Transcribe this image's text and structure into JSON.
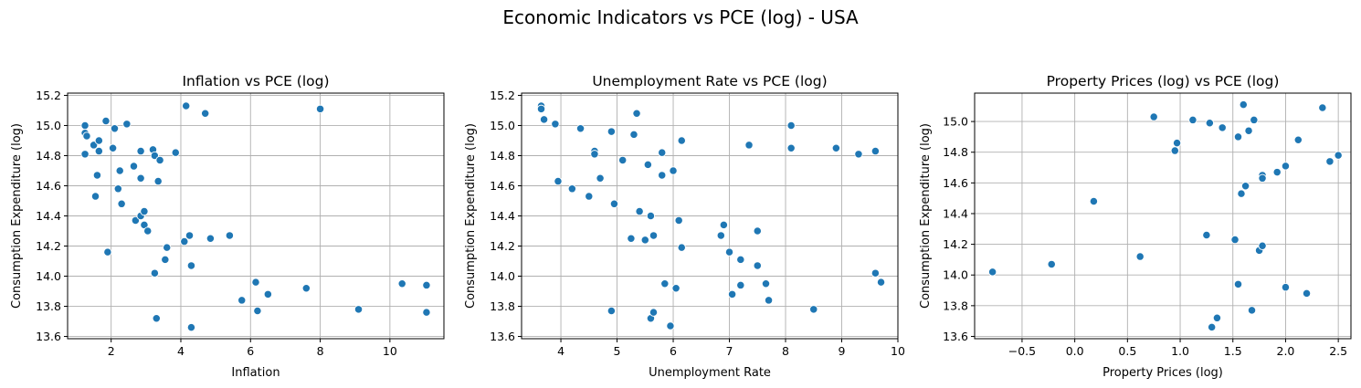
{
  "figure": {
    "title": "Economic Indicators vs PCE (log) - USA"
  },
  "colors": {
    "points": "#1f77b4",
    "grid": "#b0b0b0"
  },
  "chart_data": [
    {
      "type": "scatter",
      "title": "Inflation vs PCE (log)",
      "xlabel": "Inflation",
      "ylabel": "Consumption Expenditure (log)",
      "xlim": [
        0.75,
        11.55
      ],
      "ylim": [
        13.585,
        15.215
      ],
      "xticks": [
        2,
        4,
        6,
        8,
        10
      ],
      "yticks": [
        13.6,
        13.8,
        14.0,
        14.2,
        14.4,
        14.6,
        14.8,
        15.0,
        15.2
      ],
      "grid": true,
      "points": [
        [
          1.25,
          15.0
        ],
        [
          1.25,
          14.95
        ],
        [
          1.3,
          14.93
        ],
        [
          1.25,
          14.81
        ],
        [
          1.5,
          14.87
        ],
        [
          1.65,
          14.9
        ],
        [
          1.65,
          14.83
        ],
        [
          1.85,
          15.03
        ],
        [
          2.05,
          14.85
        ],
        [
          2.1,
          14.98
        ],
        [
          2.45,
          15.01
        ],
        [
          1.6,
          14.67
        ],
        [
          1.55,
          14.53
        ],
        [
          1.9,
          14.16
        ],
        [
          2.25,
          14.7
        ],
        [
          2.2,
          14.58
        ],
        [
          2.3,
          14.48
        ],
        [
          2.65,
          14.73
        ],
        [
          2.85,
          14.83
        ],
        [
          2.85,
          14.65
        ],
        [
          2.7,
          14.37
        ],
        [
          2.85,
          14.4
        ],
        [
          2.95,
          14.43
        ],
        [
          2.95,
          14.34
        ],
        [
          3.05,
          14.3
        ],
        [
          3.2,
          14.84
        ],
        [
          3.25,
          14.8
        ],
        [
          3.4,
          14.77
        ],
        [
          3.35,
          14.63
        ],
        [
          3.85,
          14.82
        ],
        [
          4.15,
          15.13
        ],
        [
          4.7,
          15.08
        ],
        [
          8.0,
          15.11
        ],
        [
          3.6,
          14.19
        ],
        [
          3.55,
          14.11
        ],
        [
          4.1,
          14.23
        ],
        [
          4.25,
          14.27
        ],
        [
          4.3,
          14.07
        ],
        [
          4.85,
          14.25
        ],
        [
          5.4,
          14.27
        ],
        [
          3.25,
          14.02
        ],
        [
          3.3,
          13.72
        ],
        [
          4.3,
          13.66
        ],
        [
          5.75,
          13.84
        ],
        [
          6.15,
          13.96
        ],
        [
          6.2,
          13.77
        ],
        [
          6.5,
          13.88
        ],
        [
          7.6,
          13.92
        ],
        [
          9.1,
          13.78
        ],
        [
          10.35,
          13.95
        ],
        [
          11.05,
          13.94
        ],
        [
          11.05,
          13.76
        ]
      ]
    },
    {
      "type": "scatter",
      "title": "Unemployment Rate vs PCE (log)",
      "xlabel": "Unemployment Rate",
      "ylabel": "Consumption Expenditure (log)",
      "xlim": [
        3.3,
        10.0
      ],
      "ylim": [
        13.585,
        15.215
      ],
      "xticks": [
        4,
        5,
        6,
        7,
        8,
        9,
        10
      ],
      "yticks": [
        13.6,
        13.8,
        14.0,
        14.2,
        14.4,
        14.6,
        14.8,
        15.0,
        15.2
      ],
      "grid": true,
      "points": [
        [
          3.65,
          15.13
        ],
        [
          3.65,
          15.11
        ],
        [
          3.7,
          15.04
        ],
        [
          3.9,
          15.01
        ],
        [
          4.35,
          14.98
        ],
        [
          4.9,
          14.96
        ],
        [
          5.3,
          14.94
        ],
        [
          5.35,
          15.08
        ],
        [
          6.15,
          14.9
        ],
        [
          6.0,
          14.7
        ],
        [
          4.6,
          14.83
        ],
        [
          4.6,
          14.81
        ],
        [
          5.1,
          14.77
        ],
        [
          5.55,
          14.74
        ],
        [
          5.8,
          14.82
        ],
        [
          5.8,
          14.67
        ],
        [
          4.7,
          14.65
        ],
        [
          3.95,
          14.63
        ],
        [
          4.2,
          14.58
        ],
        [
          4.5,
          14.53
        ],
        [
          4.95,
          14.48
        ],
        [
          5.4,
          14.43
        ],
        [
          5.6,
          14.4
        ],
        [
          6.1,
          14.37
        ],
        [
          5.25,
          14.25
        ],
        [
          5.5,
          14.24
        ],
        [
          5.65,
          14.27
        ],
        [
          6.15,
          14.19
        ],
        [
          6.85,
          14.27
        ],
        [
          6.9,
          14.34
        ],
        [
          7.0,
          14.16
        ],
        [
          7.5,
          14.3
        ],
        [
          7.35,
          14.87
        ],
        [
          8.1,
          14.85
        ],
        [
          8.1,
          15.0
        ],
        [
          8.9,
          14.85
        ],
        [
          9.3,
          14.81
        ],
        [
          9.6,
          14.83
        ],
        [
          7.2,
          14.11
        ],
        [
          7.5,
          14.07
        ],
        [
          5.85,
          13.95
        ],
        [
          6.05,
          13.92
        ],
        [
          7.05,
          13.88
        ],
        [
          7.2,
          13.94
        ],
        [
          7.65,
          13.95
        ],
        [
          7.7,
          13.84
        ],
        [
          4.9,
          13.77
        ],
        [
          5.6,
          13.72
        ],
        [
          5.65,
          13.76
        ],
        [
          5.95,
          13.67
        ],
        [
          8.5,
          13.78
        ],
        [
          9.6,
          14.02
        ],
        [
          9.7,
          13.96
        ]
      ]
    },
    {
      "type": "scatter",
      "title": "Property Prices (log) vs PCE (log)",
      "xlabel": "Property Prices (log)",
      "ylabel": "Consumption Expenditure (log)",
      "xlim": [
        -0.95,
        2.62
      ],
      "ylim": [
        13.585,
        15.185
      ],
      "xticks": [
        -0.5,
        0.0,
        0.5,
        1.0,
        1.5,
        2.0,
        2.5
      ],
      "xticklabels": [
        "−0.5",
        "0.0",
        "0.5",
        "1.0",
        "1.5",
        "2.0",
        "2.5"
      ],
      "yticks": [
        13.6,
        13.8,
        14.0,
        14.2,
        14.4,
        14.6,
        14.8,
        15.0
      ],
      "grid": true,
      "points": [
        [
          -0.78,
          14.02
        ],
        [
          -0.22,
          14.07
        ],
        [
          0.18,
          14.48
        ],
        [
          0.62,
          14.12
        ],
        [
          0.75,
          15.03
        ],
        [
          0.95,
          14.81
        ],
        [
          0.97,
          14.86
        ],
        [
          1.12,
          15.01
        ],
        [
          1.28,
          14.99
        ],
        [
          1.4,
          14.96
        ],
        [
          1.55,
          14.9
        ],
        [
          1.6,
          15.11
        ],
        [
          1.65,
          14.94
        ],
        [
          1.7,
          15.01
        ],
        [
          1.58,
          14.53
        ],
        [
          1.62,
          14.58
        ],
        [
          1.78,
          14.65
        ],
        [
          1.78,
          14.63
        ],
        [
          1.92,
          14.67
        ],
        [
          2.0,
          14.71
        ],
        [
          2.12,
          14.88
        ],
        [
          2.35,
          15.09
        ],
        [
          2.42,
          14.74
        ],
        [
          2.5,
          14.78
        ],
        [
          1.25,
          14.26
        ],
        [
          1.52,
          14.23
        ],
        [
          1.75,
          14.16
        ],
        [
          1.78,
          14.19
        ],
        [
          1.55,
          13.94
        ],
        [
          1.3,
          13.66
        ],
        [
          1.35,
          13.72
        ],
        [
          1.68,
          13.77
        ],
        [
          2.0,
          13.92
        ],
        [
          2.2,
          13.88
        ]
      ]
    }
  ]
}
